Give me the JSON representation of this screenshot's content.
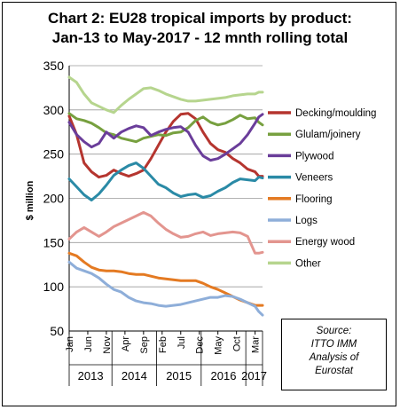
{
  "title_line1": "Chart 2: EU28 tropical imports by product:",
  "title_line2": "Jan-13 to May-2017 - 12 mnth rolling total",
  "source": [
    "Source:",
    "ITTO IMM",
    "Analysis of",
    "Eurostat"
  ],
  "chart_data": {
    "type": "line",
    "ylabel": "$ million",
    "ylim": [
      50,
      350
    ],
    "yticks": [
      "50",
      "100",
      "150",
      "200",
      "250",
      "300",
      "350"
    ],
    "grid": "horizontal",
    "legend_placement": "right",
    "x_tick_labels": [
      "Jan",
      "Jun",
      "Nov",
      "Apr",
      "Sep",
      "Feb",
      "Jul",
      "Dec",
      "May",
      "Oct",
      "Mar"
    ],
    "years": [
      "2013",
      "2014",
      "2015",
      "2016",
      "2017"
    ],
    "series": [
      {
        "name": "Decking/moulding",
        "color": "#b5352f",
        "values": [
          [
            0,
            293
          ],
          [
            2,
            272
          ],
          [
            4,
            240
          ],
          [
            6,
            230
          ],
          [
            8,
            224
          ],
          [
            10,
            226
          ],
          [
            12,
            232
          ],
          [
            14,
            228
          ],
          [
            16,
            225
          ],
          [
            18,
            228
          ],
          [
            20,
            232
          ],
          [
            22,
            245
          ],
          [
            24,
            260
          ],
          [
            26,
            275
          ],
          [
            28,
            287
          ],
          [
            30,
            295
          ],
          [
            32,
            296
          ],
          [
            34,
            290
          ],
          [
            36,
            275
          ],
          [
            38,
            262
          ],
          [
            40,
            255
          ],
          [
            42,
            252
          ],
          [
            44,
            245
          ],
          [
            46,
            240
          ],
          [
            48,
            233
          ],
          [
            50,
            230
          ],
          [
            51,
            225
          ],
          [
            52,
            225
          ]
        ]
      },
      {
        "name": "Glulam/joinery",
        "color": "#77a03f",
        "values": [
          [
            0,
            296
          ],
          [
            2,
            290
          ],
          [
            4,
            288
          ],
          [
            6,
            285
          ],
          [
            8,
            280
          ],
          [
            10,
            274
          ],
          [
            12,
            272
          ],
          [
            14,
            268
          ],
          [
            16,
            266
          ],
          [
            18,
            264
          ],
          [
            20,
            268
          ],
          [
            22,
            270
          ],
          [
            24,
            272
          ],
          [
            26,
            271
          ],
          [
            28,
            274
          ],
          [
            30,
            275
          ],
          [
            32,
            280
          ],
          [
            34,
            288
          ],
          [
            36,
            292
          ],
          [
            38,
            286
          ],
          [
            40,
            283
          ],
          [
            42,
            285
          ],
          [
            44,
            289
          ],
          [
            46,
            294
          ],
          [
            48,
            290
          ],
          [
            50,
            291
          ],
          [
            51,
            286
          ],
          [
            52,
            283
          ]
        ]
      },
      {
        "name": "Plywood",
        "color": "#6a3d9a",
        "values": [
          [
            0,
            286
          ],
          [
            2,
            272
          ],
          [
            4,
            264
          ],
          [
            6,
            258
          ],
          [
            8,
            262
          ],
          [
            10,
            275
          ],
          [
            12,
            268
          ],
          [
            14,
            275
          ],
          [
            16,
            279
          ],
          [
            18,
            282
          ],
          [
            20,
            280
          ],
          [
            22,
            271
          ],
          [
            24,
            275
          ],
          [
            26,
            278
          ],
          [
            28,
            280
          ],
          [
            30,
            281
          ],
          [
            32,
            275
          ],
          [
            34,
            260
          ],
          [
            36,
            248
          ],
          [
            38,
            243
          ],
          [
            40,
            245
          ],
          [
            42,
            250
          ],
          [
            44,
            256
          ],
          [
            46,
            262
          ],
          [
            48,
            272
          ],
          [
            50,
            285
          ],
          [
            51,
            292
          ],
          [
            52,
            295
          ]
        ]
      },
      {
        "name": "Veneers",
        "color": "#2a8aa6",
        "values": [
          [
            0,
            222
          ],
          [
            2,
            213
          ],
          [
            4,
            204
          ],
          [
            6,
            198
          ],
          [
            8,
            205
          ],
          [
            10,
            215
          ],
          [
            12,
            226
          ],
          [
            14,
            232
          ],
          [
            16,
            237
          ],
          [
            18,
            240
          ],
          [
            20,
            234
          ],
          [
            22,
            225
          ],
          [
            24,
            216
          ],
          [
            26,
            212
          ],
          [
            28,
            206
          ],
          [
            30,
            202
          ],
          [
            32,
            204
          ],
          [
            34,
            205
          ],
          [
            36,
            201
          ],
          [
            38,
            203
          ],
          [
            40,
            208
          ],
          [
            42,
            212
          ],
          [
            44,
            218
          ],
          [
            46,
            222
          ],
          [
            48,
            221
          ],
          [
            50,
            220
          ],
          [
            51,
            224
          ],
          [
            52,
            223
          ]
        ]
      },
      {
        "name": "Flooring",
        "color": "#e47a22",
        "values": [
          [
            0,
            138
          ],
          [
            2,
            135
          ],
          [
            4,
            128
          ],
          [
            6,
            122
          ],
          [
            8,
            119
          ],
          [
            10,
            118
          ],
          [
            12,
            118
          ],
          [
            14,
            117
          ],
          [
            16,
            115
          ],
          [
            18,
            114
          ],
          [
            20,
            114
          ],
          [
            22,
            112
          ],
          [
            24,
            110
          ],
          [
            26,
            109
          ],
          [
            28,
            108
          ],
          [
            30,
            107
          ],
          [
            32,
            107
          ],
          [
            34,
            107
          ],
          [
            36,
            104
          ],
          [
            38,
            100
          ],
          [
            40,
            97
          ],
          [
            42,
            93
          ],
          [
            44,
            89
          ],
          [
            46,
            85
          ],
          [
            48,
            82
          ],
          [
            50,
            79
          ],
          [
            51,
            79
          ],
          [
            52,
            79
          ]
        ]
      },
      {
        "name": "Logs",
        "color": "#8eaed9",
        "values": [
          [
            0,
            128
          ],
          [
            2,
            121
          ],
          [
            4,
            118
          ],
          [
            6,
            115
          ],
          [
            8,
            110
          ],
          [
            10,
            103
          ],
          [
            12,
            97
          ],
          [
            14,
            94
          ],
          [
            16,
            88
          ],
          [
            18,
            84
          ],
          [
            20,
            82
          ],
          [
            22,
            81
          ],
          [
            24,
            79
          ],
          [
            26,
            78
          ],
          [
            28,
            79
          ],
          [
            30,
            80
          ],
          [
            32,
            82
          ],
          [
            34,
            84
          ],
          [
            36,
            86
          ],
          [
            38,
            88
          ],
          [
            40,
            88
          ],
          [
            42,
            90
          ],
          [
            44,
            89
          ],
          [
            46,
            86
          ],
          [
            48,
            82
          ],
          [
            50,
            78
          ],
          [
            51,
            72
          ],
          [
            52,
            68
          ]
        ]
      },
      {
        "name": "Energy wood",
        "color": "#e3958f",
        "values": [
          [
            0,
            154
          ],
          [
            2,
            162
          ],
          [
            4,
            167
          ],
          [
            6,
            162
          ],
          [
            8,
            157
          ],
          [
            10,
            162
          ],
          [
            12,
            168
          ],
          [
            14,
            172
          ],
          [
            16,
            176
          ],
          [
            18,
            180
          ],
          [
            20,
            184
          ],
          [
            22,
            180
          ],
          [
            24,
            172
          ],
          [
            26,
            165
          ],
          [
            28,
            160
          ],
          [
            30,
            156
          ],
          [
            32,
            157
          ],
          [
            34,
            160
          ],
          [
            36,
            162
          ],
          [
            38,
            158
          ],
          [
            40,
            160
          ],
          [
            42,
            161
          ],
          [
            44,
            162
          ],
          [
            46,
            161
          ],
          [
            48,
            157
          ],
          [
            50,
            138
          ],
          [
            51,
            138
          ],
          [
            52,
            139
          ]
        ]
      },
      {
        "name": "Other",
        "color": "#b6d58e",
        "values": [
          [
            0,
            337
          ],
          [
            2,
            331
          ],
          [
            4,
            318
          ],
          [
            6,
            308
          ],
          [
            8,
            304
          ],
          [
            10,
            300
          ],
          [
            12,
            297
          ],
          [
            14,
            305
          ],
          [
            16,
            312
          ],
          [
            18,
            318
          ],
          [
            20,
            324
          ],
          [
            22,
            325
          ],
          [
            24,
            322
          ],
          [
            26,
            318
          ],
          [
            28,
            315
          ],
          [
            30,
            312
          ],
          [
            32,
            310
          ],
          [
            34,
            310
          ],
          [
            36,
            311
          ],
          [
            38,
            312
          ],
          [
            40,
            313
          ],
          [
            42,
            314
          ],
          [
            44,
            316
          ],
          [
            46,
            317
          ],
          [
            48,
            318
          ],
          [
            50,
            318
          ],
          [
            51,
            320
          ],
          [
            52,
            320
          ]
        ]
      }
    ]
  }
}
